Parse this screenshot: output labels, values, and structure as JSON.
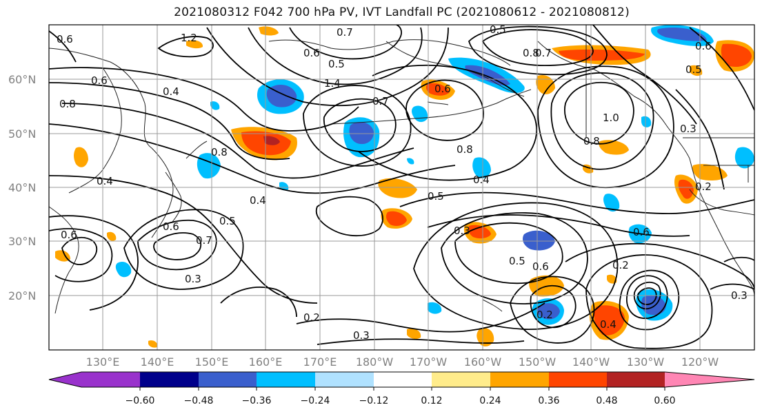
{
  "title": "2021080312 F042 700 hPa PV, IVT Landfall PC (2021080612 - 2021080812)",
  "lat_labels": [
    "60°N",
    "50°N",
    "40°N",
    "30°N",
    "20°N"
  ],
  "lon_labels": [
    "130°E",
    "140°E",
    "150°E",
    "160°E",
    "170°E",
    "180°W",
    "170°W",
    "160°W",
    "150°W",
    "140°W",
    "130°W",
    "120°W"
  ],
  "colorbar": {
    "ticks": [
      "−0.60",
      "−0.48",
      "−0.36",
      "−0.24",
      "−0.12",
      "0.12",
      "0.24",
      "0.36",
      "0.48",
      "0.60"
    ],
    "colors": [
      "#9932cc",
      "#00008b",
      "#3a5fcd",
      "#00bfff",
      "#b0e2ff",
      "#ffffff",
      "#ffec8b",
      "#ffa500",
      "#ff4500",
      "#b22222",
      "#ff86b4"
    ]
  },
  "contour_labels": [
    {
      "text": "0.6"
    },
    {
      "text": "1.2"
    },
    {
      "text": "0.7"
    },
    {
      "text": "0.6"
    },
    {
      "text": "0.5"
    },
    {
      "text": "0.8"
    },
    {
      "text": "0.7"
    },
    {
      "text": "0.6"
    },
    {
      "text": "0.6"
    },
    {
      "text": "0.4"
    },
    {
      "text": "0.8"
    },
    {
      "text": "0.5"
    },
    {
      "text": "1.4"
    },
    {
      "text": "0.7"
    },
    {
      "text": "0.6"
    },
    {
      "text": "0.5"
    },
    {
      "text": "0.8"
    },
    {
      "text": "1.0"
    },
    {
      "text": "0.8"
    },
    {
      "text": "0.3"
    },
    {
      "text": "0.4"
    },
    {
      "text": "0.4"
    },
    {
      "text": "0.5"
    },
    {
      "text": "0.8"
    },
    {
      "text": "0.4"
    },
    {
      "text": "0.2"
    },
    {
      "text": "0.6"
    },
    {
      "text": "0.7"
    },
    {
      "text": "0.5"
    },
    {
      "text": "0.3"
    },
    {
      "text": "0.6"
    },
    {
      "text": "0.3"
    },
    {
      "text": "0.5"
    },
    {
      "text": "0.6"
    },
    {
      "text": "0.2"
    },
    {
      "text": "0.2"
    },
    {
      "text": "0.3"
    },
    {
      "text": "0.2"
    },
    {
      "text": "0.4"
    },
    {
      "text": "0.3"
    },
    {
      "text": "0.6"
    }
  ]
}
